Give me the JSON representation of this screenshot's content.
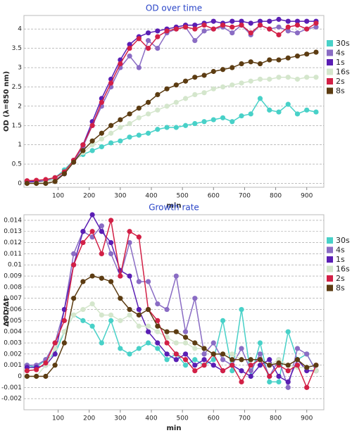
{
  "chart_data": [
    {
      "type": "line",
      "title": "OD over time",
      "x_label": "min",
      "y_label": "OD (λ=850 nm)",
      "x": [
        0,
        30,
        60,
        90,
        120,
        150,
        180,
        210,
        240,
        270,
        300,
        330,
        360,
        390,
        420,
        450,
        480,
        510,
        540,
        570,
        600,
        630,
        660,
        690,
        720,
        750,
        780,
        810,
        840,
        870,
        900,
        930
      ],
      "xlim": [
        -10,
        955
      ],
      "xticks": [
        100,
        200,
        300,
        400,
        500,
        600,
        700,
        800,
        900
      ],
      "ylim": [
        -0.1,
        4.35
      ],
      "yticks": [
        0,
        0.5,
        1,
        1.5,
        2,
        2.5,
        3,
        3.5,
        4
      ],
      "grid": true,
      "legend": "right",
      "series": [
        {
          "name": "30s",
          "color": "#48d1c8",
          "values": [
            0.05,
            0.05,
            0.07,
            0.15,
            0.35,
            0.6,
            0.75,
            0.85,
            0.95,
            1.05,
            1.1,
            1.2,
            1.25,
            1.3,
            1.4,
            1.45,
            1.45,
            1.5,
            1.55,
            1.6,
            1.65,
            1.7,
            1.6,
            1.75,
            1.8,
            2.2,
            1.9,
            1.85,
            2.05,
            1.8,
            1.9,
            1.85
          ]
        },
        {
          "name": "4s",
          "color": "#8a6cc4",
          "values": [
            0.03,
            0.04,
            0.06,
            0.1,
            0.25,
            0.55,
            0.95,
            1.5,
            2.0,
            2.5,
            3.0,
            3.3,
            3.0,
            3.7,
            3.5,
            3.9,
            4.0,
            4.05,
            3.7,
            3.95,
            4.0,
            4.05,
            3.9,
            4.1,
            3.85,
            4.1,
            4.0,
            4.05,
            3.95,
            3.9,
            4.0,
            4.05
          ]
        },
        {
          "name": "1s",
          "color": "#5a1eb4",
          "values": [
            0.05,
            0.05,
            0.06,
            0.1,
            0.25,
            0.6,
            1.0,
            1.6,
            2.2,
            2.7,
            3.2,
            3.6,
            3.8,
            3.9,
            3.95,
            4.0,
            4.05,
            4.1,
            4.1,
            4.15,
            4.2,
            4.15,
            4.2,
            4.2,
            4.15,
            4.2,
            4.2,
            4.25,
            4.2,
            4.2,
            4.2,
            4.2
          ]
        },
        {
          "name": "16s",
          "color": "#d4e6cc",
          "values": [
            0.0,
            0.02,
            0.05,
            0.1,
            0.3,
            0.55,
            0.8,
            1.0,
            1.15,
            1.3,
            1.45,
            1.55,
            1.7,
            1.8,
            1.9,
            2.0,
            2.1,
            2.2,
            2.3,
            2.35,
            2.45,
            2.5,
            2.55,
            2.6,
            2.65,
            2.7,
            2.7,
            2.75,
            2.75,
            2.7,
            2.75,
            2.75
          ]
        },
        {
          "name": "2s",
          "color": "#d22046",
          "values": [
            0.07,
            0.08,
            0.1,
            0.15,
            0.3,
            0.6,
            1.0,
            1.5,
            2.1,
            2.6,
            3.1,
            3.5,
            3.75,
            3.5,
            3.8,
            3.95,
            4.0,
            4.05,
            4.0,
            4.1,
            4.0,
            4.1,
            4.05,
            4.1,
            3.9,
            4.1,
            4.0,
            3.85,
            4.05,
            4.1,
            4.0,
            4.15
          ]
        },
        {
          "name": "8s",
          "color": "#5c3c12",
          "values": [
            0.0,
            0.0,
            0.0,
            0.05,
            0.25,
            0.55,
            0.85,
            1.1,
            1.3,
            1.5,
            1.65,
            1.8,
            1.95,
            2.1,
            2.3,
            2.45,
            2.55,
            2.65,
            2.75,
            2.8,
            2.9,
            2.95,
            3.0,
            3.1,
            3.15,
            3.1,
            3.2,
            3.2,
            3.25,
            3.3,
            3.35,
            3.4
          ]
        }
      ]
    },
    {
      "type": "line",
      "title": "Growth rate",
      "x_label": "min",
      "y_label": "ΔOD/Δt",
      "x": [
        0,
        30,
        60,
        90,
        120,
        150,
        180,
        210,
        240,
        270,
        300,
        330,
        360,
        390,
        420,
        450,
        480,
        510,
        540,
        570,
        600,
        630,
        660,
        690,
        720,
        750,
        780,
        810,
        840,
        870,
        900,
        930
      ],
      "xlim": [
        -10,
        955
      ],
      "xticks": [
        100,
        200,
        300,
        400,
        500,
        600,
        700,
        800,
        900
      ],
      "ylim": [
        -0.003,
        0.0145
      ],
      "yticks": [
        -0.002,
        -0.001,
        0,
        0.001,
        0.002,
        0.003,
        0.004,
        0.005,
        0.006,
        0.007,
        0.008,
        0.009,
        0.01,
        0.011,
        0.012,
        0.013,
        0.014
      ],
      "grid": true,
      "legend": "right",
      "series": [
        {
          "name": "30s",
          "color": "#48d1c8",
          "values": [
            0.001,
            0.0008,
            0.0015,
            0.002,
            0.004,
            0.0055,
            0.005,
            0.0045,
            0.003,
            0.005,
            0.0025,
            0.002,
            0.0025,
            0.003,
            0.0025,
            0.0015,
            0.002,
            0.001,
            0.0015,
            0.001,
            0.0015,
            0.005,
            0.0005,
            0.006,
            0.0,
            0.003,
            -0.0005,
            -0.0005,
            0.004,
            0.0015,
            0.002,
            0.0005
          ]
        },
        {
          "name": "4s",
          "color": "#8a6cc4",
          "values": [
            0.001,
            0.001,
            0.0015,
            0.003,
            0.006,
            0.011,
            0.013,
            0.0125,
            0.0135,
            0.011,
            0.009,
            0.012,
            0.0085,
            0.0085,
            0.0065,
            0.006,
            0.009,
            0.004,
            0.007,
            0.002,
            0.003,
            0.0015,
            0.001,
            0.0025,
            0.0005,
            0.002,
            0.0,
            0.0015,
            -0.001,
            0.0025,
            0.002,
            0.0005
          ]
        },
        {
          "name": "1s",
          "color": "#5a1eb4",
          "values": [
            0.0008,
            0.0008,
            0.001,
            0.002,
            0.006,
            0.01,
            0.013,
            0.0145,
            0.013,
            0.012,
            0.0095,
            0.009,
            0.006,
            0.004,
            0.003,
            0.002,
            0.0015,
            0.002,
            0.001,
            0.0015,
            0.001,
            0.0005,
            0.001,
            0.0005,
            0.0,
            0.001,
            0.0015,
            0.0,
            -0.0005,
            0.0015,
            0.0005,
            0.0005
          ]
        },
        {
          "name": "16s",
          "color": "#d4e6cc",
          "values": [
            0.0,
            0.0,
            0.001,
            0.0025,
            0.004,
            0.0055,
            0.006,
            0.0065,
            0.0055,
            0.0055,
            0.005,
            0.0055,
            0.0045,
            0.0045,
            0.004,
            0.0035,
            0.003,
            0.003,
            0.0025,
            0.0025,
            0.002,
            0.002,
            0.002,
            0.0015,
            0.0015,
            0.0015,
            0.001,
            0.0015,
            0.001,
            0.0008,
            0.0008,
            0.0005
          ]
        },
        {
          "name": "2s",
          "color": "#d22046",
          "values": [
            0.0005,
            0.0006,
            0.0012,
            0.003,
            0.005,
            0.01,
            0.012,
            0.013,
            0.011,
            0.014,
            0.009,
            0.013,
            0.0125,
            0.006,
            0.005,
            0.003,
            0.002,
            0.0015,
            0.0005,
            0.001,
            0.002,
            0.0005,
            0.001,
            -0.0005,
            0.001,
            0.0015,
            0.0,
            0.001,
            0.0005,
            0.001,
            -0.001,
            0.001
          ]
        },
        {
          "name": "8s",
          "color": "#5c3c12",
          "values": [
            0.0,
            0.0,
            0.0,
            0.001,
            0.003,
            0.007,
            0.0085,
            0.009,
            0.0088,
            0.0085,
            0.007,
            0.006,
            0.0055,
            0.006,
            0.0045,
            0.004,
            0.004,
            0.0035,
            0.003,
            0.0025,
            0.002,
            0.002,
            0.0015,
            0.0015,
            0.0015,
            0.0015,
            0.001,
            0.0012,
            0.001,
            0.0015,
            0.0008,
            0.001
          ]
        }
      ]
    }
  ]
}
